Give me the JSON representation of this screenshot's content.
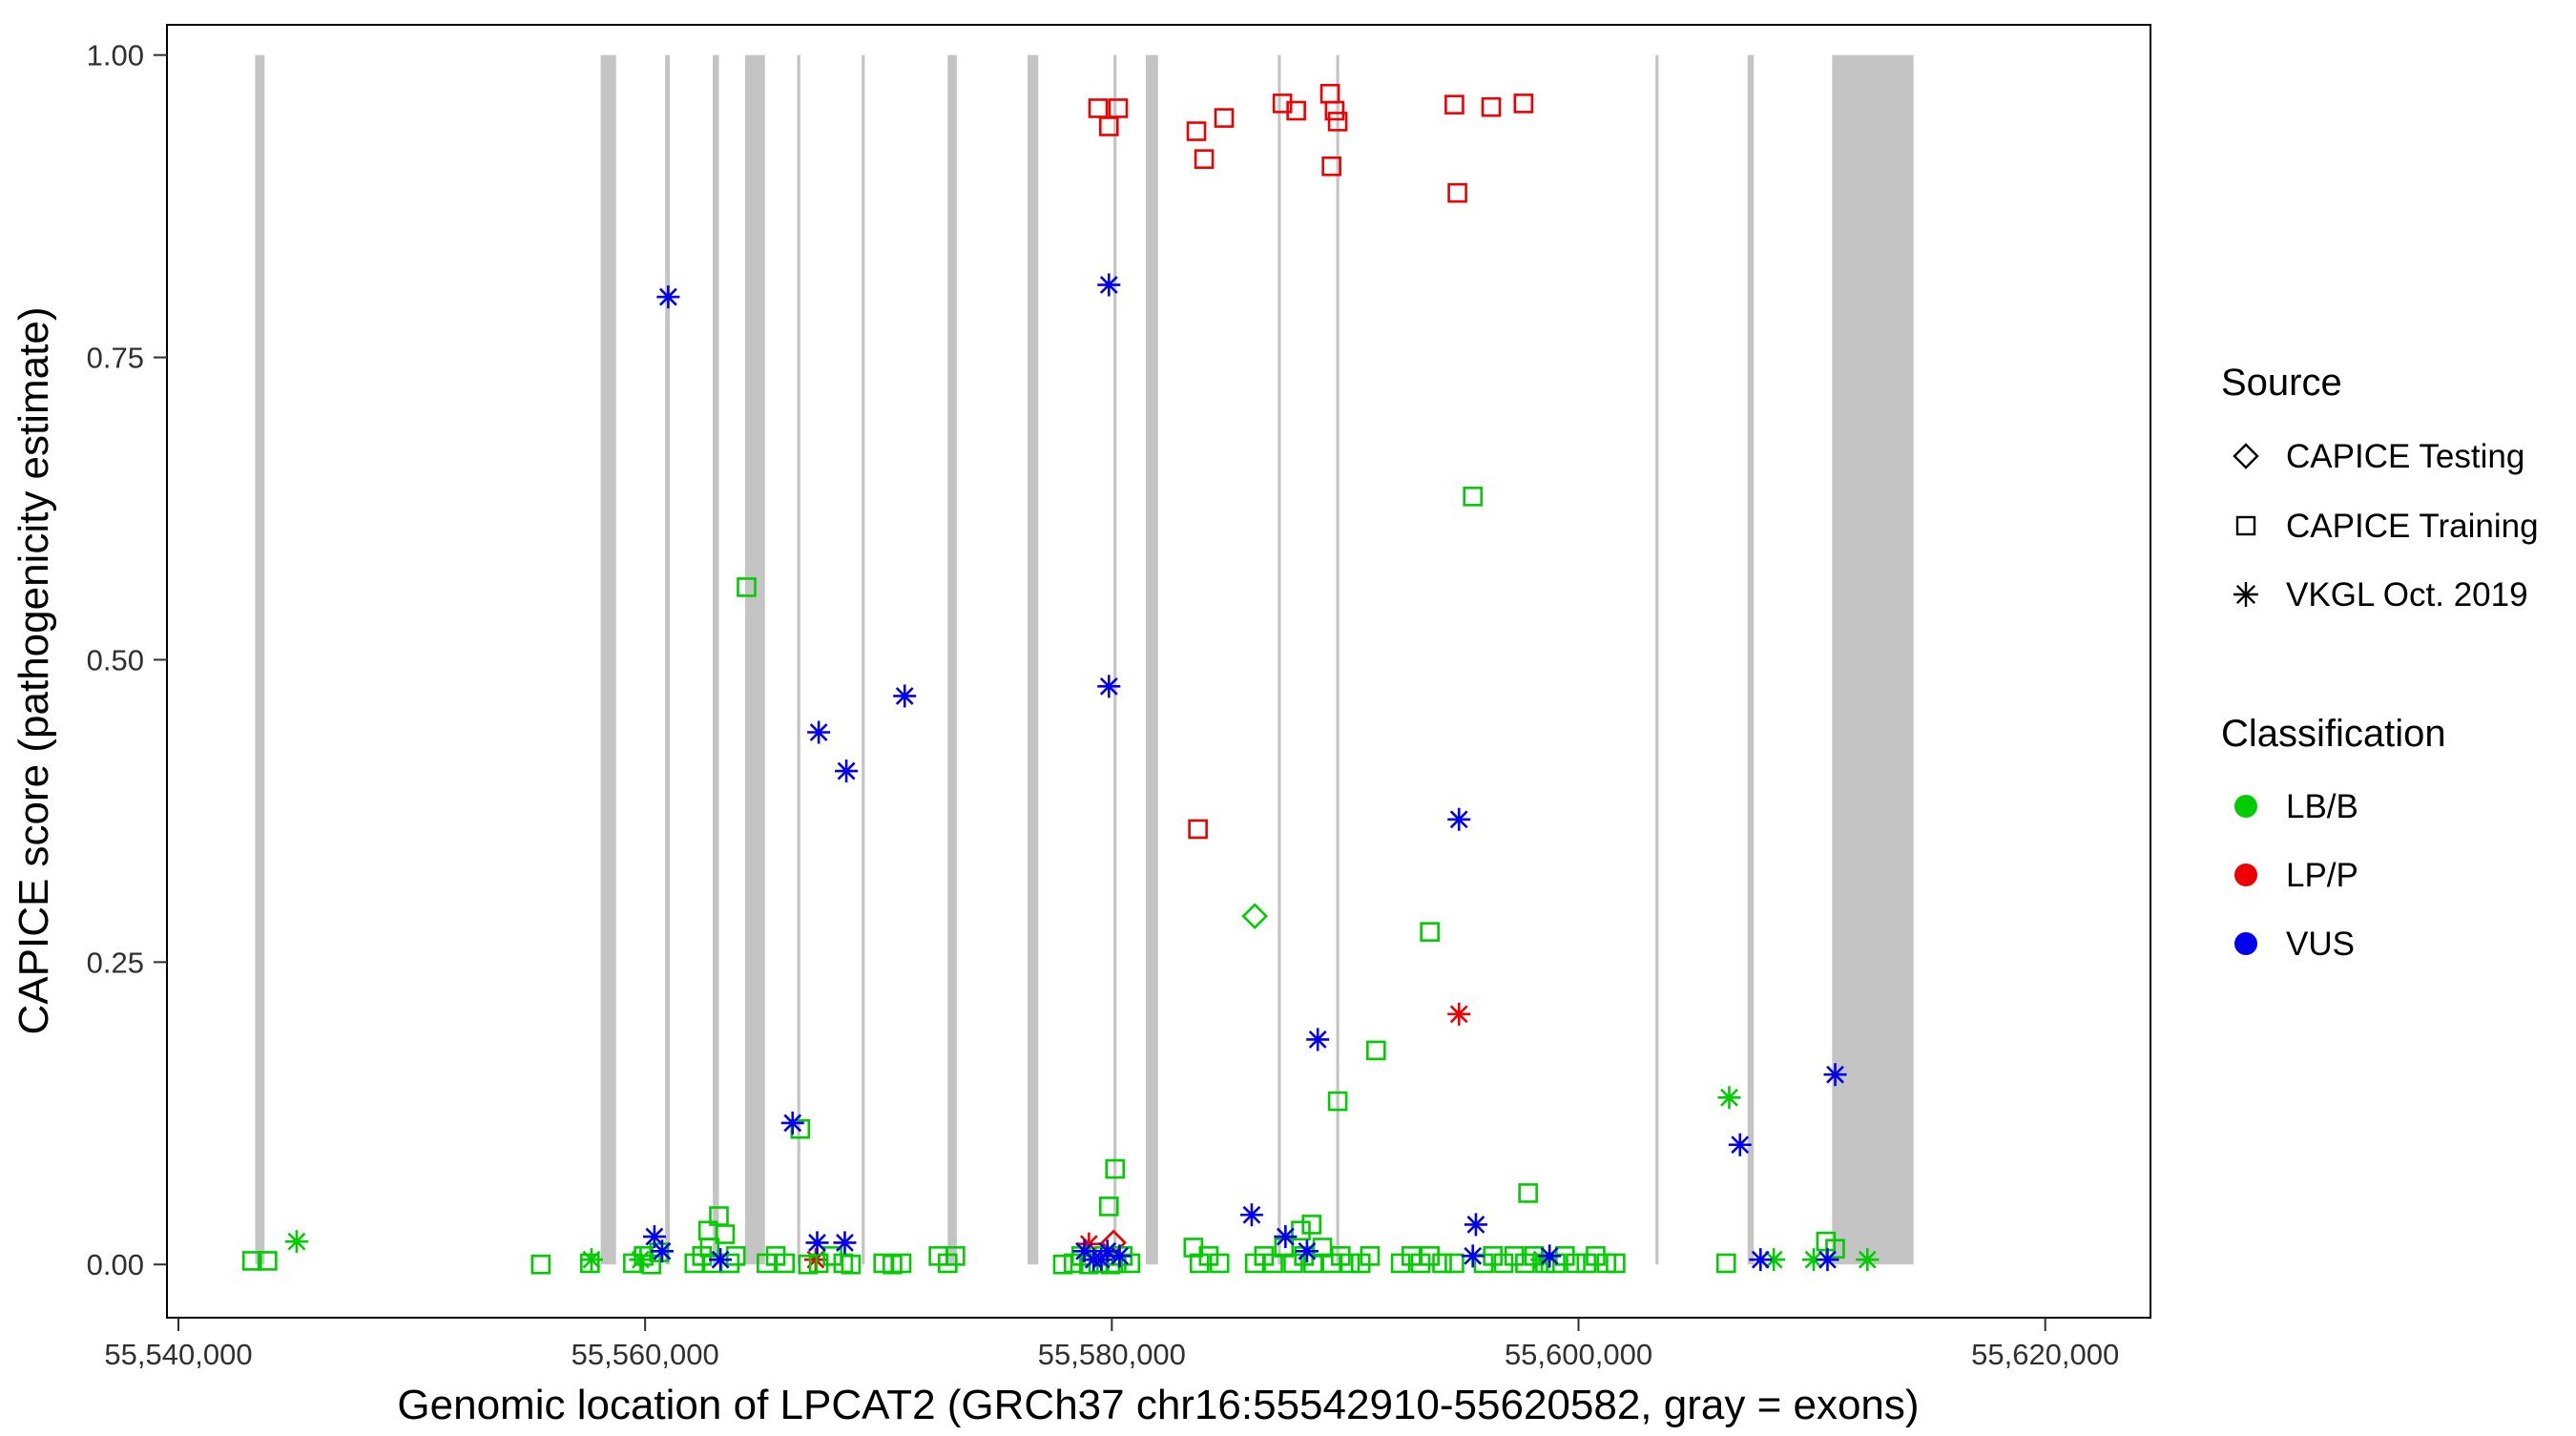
{
  "figure": {
    "background": "#ffffff",
    "panel_border_color": "#000000",
    "tick_label_color": "#303030"
  },
  "legend": {
    "source": {
      "title": "Source",
      "items": [
        {
          "label": "CAPICE Testing",
          "shape": "diamond"
        },
        {
          "label": "CAPICE Training",
          "shape": "square"
        },
        {
          "label": "VKGL Oct. 2019",
          "shape": "asterisk"
        }
      ]
    },
    "classification": {
      "title": "Classification",
      "items": [
        {
          "label": "LB/B",
          "color": "#00cc00"
        },
        {
          "label": "LP/P",
          "color": "#ee0000"
        },
        {
          "label": "VUS",
          "color": "#0000ee"
        }
      ]
    }
  },
  "chart_data": {
    "type": "scatter",
    "title": "",
    "xlabel": "Genomic location of LPCAT2 (GRCh37 chr16:55542910-55620582, gray = exons)",
    "ylabel": "CAPICE score (pathogenicity estimate)",
    "legend_position": "right",
    "grid": false,
    "xlim": [
      55539509,
      55624510
    ],
    "ylim": [
      -0.044,
      1.025
    ],
    "x_ticks": [
      {
        "value": 55540000,
        "label": "55,540,000"
      },
      {
        "value": 55560000,
        "label": "55,560,000"
      },
      {
        "value": 55580000,
        "label": "55,580,000"
      },
      {
        "value": 55600000,
        "label": "55,600,000"
      },
      {
        "value": 55620000,
        "label": "55,620,000"
      }
    ],
    "y_ticks": [
      {
        "value": 0.0,
        "label": "0.00"
      },
      {
        "value": 0.25,
        "label": "0.25"
      },
      {
        "value": 0.5,
        "label": "0.50"
      },
      {
        "value": 0.75,
        "label": "0.75"
      },
      {
        "value": 1.0,
        "label": "1.00"
      }
    ],
    "exon_color": "#c4c4c4",
    "exons": [
      [
        55543290,
        55543690
      ],
      [
        55558095,
        55558755
      ],
      [
        55560858,
        55561060
      ],
      [
        55562898,
        55563160
      ],
      [
        55564280,
        55565135
      ],
      [
        55566520,
        55566650
      ],
      [
        55569280,
        55569410
      ],
      [
        55572966,
        55573360
      ],
      [
        55576387,
        55576850
      ],
      [
        55580072,
        55580204
      ],
      [
        55581454,
        55581980
      ],
      [
        55587112,
        55587244
      ],
      [
        55589613,
        55589745
      ],
      [
        55603297,
        55603429
      ],
      [
        55607245,
        55607510
      ],
      [
        55610866,
        55614353
      ]
    ],
    "colors": {
      "LB/B": "#00cc00",
      "LP/P": "#ee0000",
      "VUS": "#0000ee"
    },
    "shape_legend": {
      "CAPICE Testing": "diamond",
      "CAPICE Training": "square",
      "VKGL Oct. 2019": "asterisk"
    },
    "point_format": [
      "genomic_position",
      "capice_score",
      "marker_shape",
      "classification"
    ],
    "points": [
      [
        55579414,
        0.956,
        "square",
        "LP/P"
      ],
      [
        55579875,
        0.941,
        "square",
        "LP/P"
      ],
      [
        55580270,
        0.956,
        "square",
        "LP/P"
      ],
      [
        55583625,
        0.937,
        "square",
        "LP/P"
      ],
      [
        55583954,
        0.914,
        "square",
        "LP/P"
      ],
      [
        55584810,
        0.948,
        "square",
        "LP/P"
      ],
      [
        55587310,
        0.96,
        "square",
        "LP/P"
      ],
      [
        55587902,
        0.954,
        "square",
        "LP/P"
      ],
      [
        55589350,
        0.968,
        "square",
        "LP/P"
      ],
      [
        55589547,
        0.954,
        "square",
        "LP/P"
      ],
      [
        55589679,
        0.945,
        "square",
        "LP/P"
      ],
      [
        55589416,
        0.908,
        "square",
        "LP/P"
      ],
      [
        55594680,
        0.959,
        "square",
        "LP/P"
      ],
      [
        55594811,
        0.886,
        "square",
        "LP/P"
      ],
      [
        55596259,
        0.957,
        "square",
        "LP/P"
      ],
      [
        55597641,
        0.96,
        "square",
        "LP/P"
      ],
      [
        55583691,
        0.36,
        "square",
        "LP/P"
      ],
      [
        55594877,
        0.207,
        "asterisk",
        "LP/P"
      ],
      [
        55567307,
        0.004,
        "asterisk",
        "LP/P"
      ],
      [
        55579019,
        0.017,
        "asterisk",
        "LP/P"
      ],
      [
        55580072,
        0.018,
        "diamond",
        "LP/P"
      ],
      [
        55586126,
        0.288,
        "diamond",
        "LB/B"
      ],
      [
        55564346,
        0.56,
        "square",
        "LB/B"
      ],
      [
        55595469,
        0.635,
        "square",
        "LB/B"
      ],
      [
        55593627,
        0.275,
        "square",
        "LB/B"
      ],
      [
        55591324,
        0.177,
        "square",
        "LB/B"
      ],
      [
        55589679,
        0.135,
        "square",
        "LB/B"
      ],
      [
        55566649,
        0.112,
        "square",
        "LB/B"
      ],
      [
        55580138,
        0.079,
        "square",
        "LB/B"
      ],
      [
        55597838,
        0.059,
        "square",
        "LB/B"
      ],
      [
        55563162,
        0.04,
        "square",
        "LB/B"
      ],
      [
        55563425,
        0.025,
        "square",
        "LB/B"
      ],
      [
        55562701,
        0.028,
        "square",
        "LB/B"
      ],
      [
        55579875,
        0.048,
        "square",
        "LB/B"
      ],
      [
        55588100,
        0.028,
        "square",
        "LB/B"
      ],
      [
        55588560,
        0.033,
        "square",
        "LB/B"
      ],
      [
        55610603,
        0.019,
        "square",
        "LB/B"
      ],
      [
        55583493,
        0.014,
        "square",
        "LB/B"
      ],
      [
        55543158,
        0.003,
        "square",
        "LB/B"
      ],
      [
        55543816,
        0.003,
        "square",
        "LB/B"
      ],
      [
        55555529,
        0.0,
        "square",
        "LB/B"
      ],
      [
        55557634,
        0.001,
        "square",
        "LB/B"
      ],
      [
        55559476,
        0.001,
        "square",
        "LB/B"
      ],
      [
        55559937,
        0.007,
        "square",
        "LB/B"
      ],
      [
        55560266,
        0.0,
        "square",
        "LB/B"
      ],
      [
        55560595,
        0.01,
        "square",
        "LB/B"
      ],
      [
        55562109,
        0.001,
        "square",
        "LB/B"
      ],
      [
        55562438,
        0.007,
        "square",
        "LB/B"
      ],
      [
        55562767,
        0.014,
        "square",
        "LB/B"
      ],
      [
        55562898,
        0.001,
        "square",
        "LB/B"
      ],
      [
        55563622,
        0.001,
        "square",
        "LB/B"
      ],
      [
        55563885,
        0.007,
        "square",
        "LB/B"
      ],
      [
        55565201,
        0.001,
        "square",
        "LB/B"
      ],
      [
        55565596,
        0.007,
        "square",
        "LB/B"
      ],
      [
        55565991,
        0.001,
        "square",
        "LB/B"
      ],
      [
        55566978,
        0.0,
        "square",
        "LB/B"
      ],
      [
        55567439,
        0.001,
        "square",
        "LB/B"
      ],
      [
        55568031,
        0.007,
        "square",
        "LB/B"
      ],
      [
        55568491,
        0.001,
        "square",
        "LB/B"
      ],
      [
        55568820,
        0.0,
        "square",
        "LB/B"
      ],
      [
        55570202,
        0.001,
        "square",
        "LB/B"
      ],
      [
        55570597,
        0.0,
        "square",
        "LB/B"
      ],
      [
        55570992,
        0.001,
        "square",
        "LB/B"
      ],
      [
        55572571,
        0.007,
        "square",
        "LB/B"
      ],
      [
        55572966,
        0.001,
        "square",
        "LB/B"
      ],
      [
        55573295,
        0.007,
        "square",
        "LB/B"
      ],
      [
        55577900,
        0.0,
        "square",
        "LB/B"
      ],
      [
        55578361,
        0.001,
        "square",
        "LB/B"
      ],
      [
        55578690,
        0.007,
        "square",
        "LB/B"
      ],
      [
        55579019,
        0.0,
        "square",
        "LB/B"
      ],
      [
        55579414,
        0.001,
        "square",
        "LB/B"
      ],
      [
        55579677,
        0.007,
        "square",
        "LB/B"
      ],
      [
        55579940,
        0.0,
        "square",
        "LB/B"
      ],
      [
        55580204,
        0.001,
        "square",
        "LB/B"
      ],
      [
        55580467,
        0.007,
        "square",
        "LB/B"
      ],
      [
        55580796,
        0.001,
        "square",
        "LB/B"
      ],
      [
        55583757,
        0.001,
        "square",
        "LB/B"
      ],
      [
        55584151,
        0.007,
        "square",
        "LB/B"
      ],
      [
        55584612,
        0.001,
        "square",
        "LB/B"
      ],
      [
        55586126,
        0.001,
        "square",
        "LB/B"
      ],
      [
        55586521,
        0.007,
        "square",
        "LB/B"
      ],
      [
        55586916,
        0.001,
        "square",
        "LB/B"
      ],
      [
        55587376,
        0.014,
        "square",
        "LB/B"
      ],
      [
        55587771,
        0.001,
        "square",
        "LB/B"
      ],
      [
        55588231,
        0.007,
        "square",
        "LB/B"
      ],
      [
        55588626,
        0.001,
        "square",
        "LB/B"
      ],
      [
        55589021,
        0.014,
        "square",
        "LB/B"
      ],
      [
        55589416,
        0.001,
        "square",
        "LB/B"
      ],
      [
        55589811,
        0.007,
        "square",
        "LB/B"
      ],
      [
        55590206,
        0.001,
        "square",
        "LB/B"
      ],
      [
        55590666,
        0.001,
        "square",
        "LB/B"
      ],
      [
        55591061,
        0.007,
        "square",
        "LB/B"
      ],
      [
        55592377,
        0.001,
        "square",
        "LB/B"
      ],
      [
        55592837,
        0.007,
        "square",
        "LB/B"
      ],
      [
        55593232,
        0.001,
        "square",
        "LB/B"
      ],
      [
        55593627,
        0.007,
        "square",
        "LB/B"
      ],
      [
        55594153,
        0.001,
        "square",
        "LB/B"
      ],
      [
        55594680,
        0.001,
        "square",
        "LB/B"
      ],
      [
        55595930,
        0.001,
        "square",
        "LB/B"
      ],
      [
        55596325,
        0.007,
        "square",
        "LB/B"
      ],
      [
        55596785,
        0.001,
        "square",
        "LB/B"
      ],
      [
        55597246,
        0.007,
        "square",
        "LB/B"
      ],
      [
        55597706,
        0.001,
        "square",
        "LB/B"
      ],
      [
        55598101,
        0.007,
        "square",
        "LB/B"
      ],
      [
        55598562,
        0.001,
        "square",
        "LB/B"
      ],
      [
        55599022,
        0.001,
        "square",
        "LB/B"
      ],
      [
        55599417,
        0.007,
        "square",
        "LB/B"
      ],
      [
        55599877,
        0.001,
        "square",
        "LB/B"
      ],
      [
        55600338,
        0.001,
        "square",
        "LB/B"
      ],
      [
        55600733,
        0.007,
        "square",
        "LB/B"
      ],
      [
        55601193,
        0.001,
        "square",
        "LB/B"
      ],
      [
        55601588,
        0.001,
        "square",
        "LB/B"
      ],
      [
        55606326,
        0.001,
        "square",
        "LB/B"
      ],
      [
        55610997,
        0.013,
        "square",
        "LB/B"
      ],
      [
        55545067,
        0.019,
        "asterisk",
        "LB/B"
      ],
      [
        55606458,
        0.138,
        "asterisk",
        "LB/B"
      ],
      [
        55557700,
        0.004,
        "asterisk",
        "LB/B"
      ],
      [
        55559806,
        0.004,
        "asterisk",
        "LB/B"
      ],
      [
        55598430,
        0.004,
        "asterisk",
        "LB/B"
      ],
      [
        55608366,
        0.004,
        "asterisk",
        "LB/B"
      ],
      [
        55610077,
        0.004,
        "asterisk",
        "LB/B"
      ],
      [
        55612380,
        0.004,
        "asterisk",
        "LB/B"
      ],
      [
        55560990,
        0.8,
        "asterisk",
        "VUS"
      ],
      [
        55579875,
        0.81,
        "asterisk",
        "VUS"
      ],
      [
        55567439,
        0.44,
        "asterisk",
        "VUS"
      ],
      [
        55568623,
        0.408,
        "asterisk",
        "VUS"
      ],
      [
        55571123,
        0.47,
        "asterisk",
        "VUS"
      ],
      [
        55579875,
        0.478,
        "asterisk",
        "VUS"
      ],
      [
        55594877,
        0.368,
        "asterisk",
        "VUS"
      ],
      [
        55588824,
        0.186,
        "asterisk",
        "VUS"
      ],
      [
        55566320,
        0.117,
        "asterisk",
        "VUS"
      ],
      [
        55585994,
        0.041,
        "asterisk",
        "VUS"
      ],
      [
        55587441,
        0.023,
        "asterisk",
        "VUS"
      ],
      [
        55595601,
        0.033,
        "asterisk",
        "VUS"
      ],
      [
        55606919,
        0.099,
        "asterisk",
        "VUS"
      ],
      [
        55610998,
        0.157,
        "asterisk",
        "VUS"
      ],
      [
        55560398,
        0.023,
        "asterisk",
        "VUS"
      ],
      [
        55560727,
        0.011,
        "asterisk",
        "VUS"
      ],
      [
        55563227,
        0.004,
        "asterisk",
        "VUS"
      ],
      [
        55567373,
        0.018,
        "asterisk",
        "VUS"
      ],
      [
        55568557,
        0.018,
        "asterisk",
        "VUS"
      ],
      [
        55578822,
        0.011,
        "asterisk",
        "VUS"
      ],
      [
        55579217,
        0.004,
        "asterisk",
        "VUS"
      ],
      [
        55579546,
        0.004,
        "asterisk",
        "VUS"
      ],
      [
        55579809,
        0.011,
        "asterisk",
        "VUS"
      ],
      [
        55580335,
        0.007,
        "asterisk",
        "VUS"
      ],
      [
        55588363,
        0.011,
        "asterisk",
        "VUS"
      ],
      [
        55595469,
        0.007,
        "asterisk",
        "VUS"
      ],
      [
        55598759,
        0.007,
        "asterisk",
        "VUS"
      ],
      [
        55607800,
        0.004,
        "asterisk",
        "VUS"
      ],
      [
        55610669,
        0.004,
        "asterisk",
        "VUS"
      ]
    ]
  }
}
